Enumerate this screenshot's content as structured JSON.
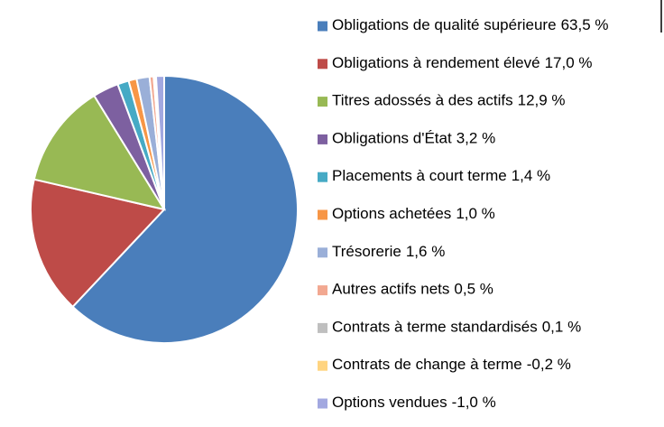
{
  "chart_data": {
    "type": "pie",
    "categories": [
      "Obligations de qualité supérieure",
      "Obligations à rendement élevé",
      "Titres adossés à des actifs",
      "Obligations d'État",
      "Placements à court terme",
      "Options achetées",
      "Trésorerie",
      "Autres actifs nets",
      "Contrats à terme standardisés",
      "Contrats de change à terme",
      "Options vendues"
    ],
    "values": [
      63.5,
      17.0,
      12.9,
      3.2,
      1.4,
      1.0,
      1.6,
      0.5,
      0.1,
      -0.2,
      -1.0
    ],
    "value_labels": [
      "63,5 %",
      "17,0 %",
      "12,9 %",
      "3,2 %",
      "1,4 %",
      "1,0 %",
      "1,6 %",
      "0,5 %",
      "0,1 %",
      "-0,2 %",
      "-1,0 %"
    ],
    "colors": [
      "#4a7ebb",
      "#be4b48",
      "#98b954",
      "#7d60a0",
      "#46aac5",
      "#f79646",
      "#9aafd8",
      "#f2a891",
      "#bfbfbf",
      "#ffd480",
      "#a2a8e0"
    ],
    "legend": "right"
  }
}
